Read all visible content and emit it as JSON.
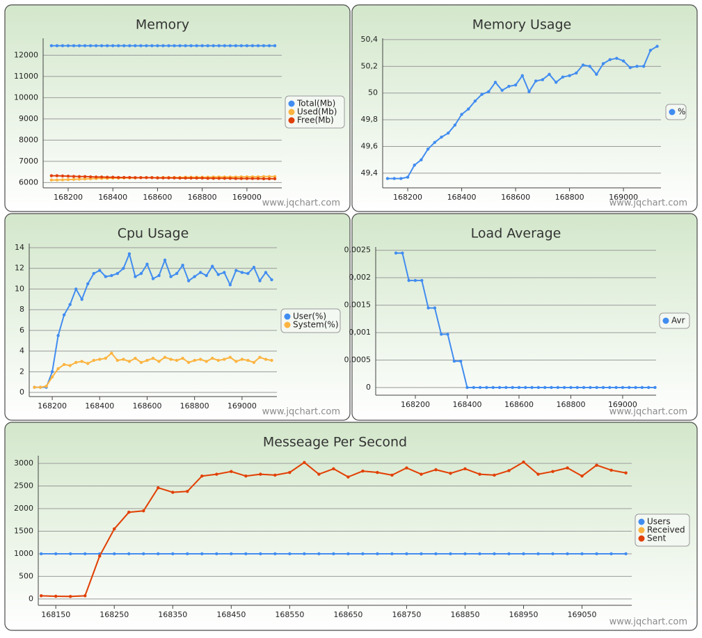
{
  "chart_data": [
    {
      "type": "line",
      "title": "Memory",
      "credit": "www.jqchart.com",
      "x": [
        168125,
        168150,
        168175,
        168200,
        168225,
        168250,
        168275,
        168300,
        168325,
        168350,
        168375,
        168400,
        168425,
        168450,
        168475,
        168500,
        168525,
        168550,
        168575,
        168600,
        168625,
        168650,
        168675,
        168700,
        168725,
        168750,
        168775,
        168800,
        168825,
        168850,
        168875,
        168900,
        168925,
        168950,
        168975,
        169000,
        169025,
        169050,
        169075,
        169100,
        169125
      ],
      "xlim": [
        168088,
        169156
      ],
      "xticks": [
        168200,
        168400,
        168600,
        168800,
        169000
      ],
      "ylim": [
        5750,
        12800
      ],
      "yticks": [
        6000,
        7000,
        8000,
        9000,
        10000,
        11000,
        12000
      ],
      "grid": true,
      "legend": "right",
      "series": [
        {
          "name": "Total(Mb)",
          "color": "#418cf0",
          "values": [
            12450,
            12450,
            12450,
            12450,
            12450,
            12450,
            12450,
            12450,
            12450,
            12450,
            12450,
            12450,
            12450,
            12450,
            12450,
            12450,
            12450,
            12450,
            12450,
            12450,
            12450,
            12450,
            12450,
            12450,
            12450,
            12450,
            12450,
            12450,
            12450,
            12450,
            12450,
            12450,
            12450,
            12450,
            12450,
            12450,
            12450,
            12450,
            12450,
            12450,
            12450
          ]
        },
        {
          "name": "Used(Mb)",
          "color": "#fcb441",
          "values": [
            6120,
            6120,
            6130,
            6140,
            6150,
            6160,
            6170,
            6180,
            6190,
            6200,
            6200,
            6210,
            6210,
            6220,
            6220,
            6220,
            6230,
            6230,
            6230,
            6230,
            6240,
            6240,
            6240,
            6240,
            6250,
            6250,
            6250,
            6250,
            6250,
            6260,
            6260,
            6260,
            6260,
            6260,
            6270,
            6270,
            6270,
            6270,
            6280,
            6280,
            6280
          ]
        },
        {
          "name": "Free(Mb)",
          "color": "#e0400a",
          "values": [
            6320,
            6320,
            6310,
            6300,
            6290,
            6280,
            6280,
            6270,
            6260,
            6260,
            6250,
            6250,
            6240,
            6240,
            6240,
            6230,
            6230,
            6230,
            6230,
            6220,
            6220,
            6220,
            6220,
            6210,
            6210,
            6210,
            6210,
            6210,
            6200,
            6200,
            6200,
            6200,
            6200,
            6190,
            6190,
            6190,
            6190,
            6190,
            6180,
            6180,
            6180
          ]
        }
      ]
    },
    {
      "type": "line",
      "title": "Memory Usage",
      "credit": "www.jqchart.com",
      "x": [
        168125,
        168150,
        168175,
        168200,
        168225,
        168250,
        168275,
        168300,
        168325,
        168350,
        168375,
        168400,
        168425,
        168450,
        168475,
        168500,
        168525,
        168550,
        168575,
        168600,
        168625,
        168650,
        168675,
        168700,
        168725,
        168750,
        168775,
        168800,
        168825,
        168850,
        168875,
        168900,
        168925,
        168950,
        168975,
        169000,
        169025,
        169050,
        169075,
        169100,
        169125
      ],
      "xlim": [
        168107,
        169139
      ],
      "xticks": [
        168200,
        168400,
        168600,
        168800,
        169000
      ],
      "ylim": [
        49.29,
        50.41
      ],
      "yticks": [
        {
          "value": 49.4,
          "label": "49,4"
        },
        {
          "value": 49.6,
          "label": "49,6"
        },
        {
          "value": 49.8,
          "label": "49,8"
        },
        50,
        {
          "value": 50.2,
          "label": "50,2"
        },
        {
          "value": 50.4,
          "label": "50,4"
        }
      ],
      "grid": true,
      "legend": "right",
      "series": [
        {
          "name": "%",
          "color": "#418cf0",
          "values": [
            49.36,
            49.36,
            49.36,
            49.37,
            49.46,
            49.5,
            49.58,
            49.63,
            49.67,
            49.7,
            49.76,
            49.84,
            49.88,
            49.94,
            49.99,
            50.01,
            50.08,
            50.02,
            50.05,
            50.06,
            50.13,
            50.01,
            50.09,
            50.1,
            50.14,
            50.08,
            50.12,
            50.13,
            50.15,
            50.21,
            50.2,
            50.14,
            50.22,
            50.25,
            50.26,
            50.24,
            50.19,
            50.2,
            50.2,
            50.32,
            50.35
          ]
        }
      ]
    },
    {
      "type": "line",
      "title": "Cpu Usage",
      "credit": "www.jqchart.com",
      "x": [
        168125,
        168150,
        168175,
        168200,
        168225,
        168250,
        168275,
        168300,
        168325,
        168350,
        168375,
        168400,
        168425,
        168450,
        168475,
        168500,
        168525,
        168550,
        168575,
        168600,
        168625,
        168650,
        168675,
        168700,
        168725,
        168750,
        168775,
        168800,
        168825,
        168850,
        168875,
        168900,
        168925,
        168950,
        168975,
        169000,
        169025,
        169050,
        169075,
        169100,
        169125
      ],
      "xlim": [
        168103,
        169147
      ],
      "xticks": [
        168200,
        168400,
        168600,
        168800,
        169000
      ],
      "ylim": [
        -0.4,
        14.4
      ],
      "yticks": [
        0,
        2,
        4,
        6,
        8,
        10,
        12,
        14
      ],
      "grid": true,
      "legend": "right",
      "series": [
        {
          "name": "User(%)",
          "color": "#418cf0",
          "values": [
            0.5,
            0.5,
            0.5,
            2,
            5.5,
            7.5,
            8.5,
            10,
            9,
            10.5,
            11.5,
            11.8,
            11.2,
            11.3,
            11.5,
            12,
            13.4,
            11.2,
            11.5,
            12.4,
            11,
            11.3,
            12.8,
            11.2,
            11.5,
            12.3,
            10.8,
            11.2,
            11.6,
            11.3,
            12.2,
            11.4,
            11.6,
            10.4,
            11.8,
            11.6,
            11.5,
            12.1,
            10.8,
            11.6,
            10.9
          ]
        },
        {
          "name": "System(%)",
          "color": "#fcb441",
          "values": [
            0.5,
            0.5,
            0.6,
            1.5,
            2.3,
            2.7,
            2.6,
            2.9,
            3,
            2.8,
            3.1,
            3.2,
            3.3,
            3.8,
            3.1,
            3.2,
            3,
            3.3,
            2.9,
            3.1,
            3.3,
            3,
            3.4,
            3.2,
            3.1,
            3.3,
            2.9,
            3.1,
            3.2,
            3,
            3.3,
            3.1,
            3.2,
            3.4,
            3,
            3.2,
            3.1,
            2.9,
            3.4,
            3.2,
            3.1
          ]
        }
      ]
    },
    {
      "type": "line",
      "title": "Load Average",
      "credit": "www.jqchart.com",
      "x": [
        168125,
        168150,
        168175,
        168200,
        168225,
        168250,
        168275,
        168300,
        168325,
        168350,
        168375,
        168400,
        168425,
        168450,
        168475,
        168500,
        168525,
        168550,
        168575,
        168600,
        168625,
        168650,
        168675,
        168700,
        168725,
        168750,
        168775,
        168800,
        168825,
        168850,
        168875,
        168900,
        168925,
        168950,
        168975,
        169000,
        169025,
        169050,
        169075,
        169100,
        169125
      ],
      "xlim": [
        168047,
        169129
      ],
      "xticks": [
        168200,
        168400,
        168600,
        168800,
        169000
      ],
      "ylim": [
        -0.00014,
        0.00256
      ],
      "yticks": [
        0,
        {
          "value": 0.0005,
          "label": "0,0005"
        },
        {
          "value": 0.001,
          "label": "0,001"
        },
        {
          "value": 0.0015,
          "label": "0,0015"
        },
        {
          "value": 0.002,
          "label": "0,002"
        },
        {
          "value": 0.0025,
          "label": "0,0025"
        }
      ],
      "grid": true,
      "legend": "right",
      "series": [
        {
          "name": "Avr",
          "color": "#418cf0",
          "values": [
            0.00245,
            0.00245,
            0.00195,
            0.00195,
            0.00195,
            0.00145,
            0.00145,
            0.00097,
            0.00097,
            0.00048,
            0.00048,
            0,
            0,
            0,
            0,
            0,
            0,
            0,
            0,
            0,
            0,
            0,
            0,
            0,
            0,
            0,
            0,
            0,
            0,
            0,
            0,
            0,
            0,
            0,
            0,
            0,
            0,
            0,
            0,
            0,
            0
          ]
        }
      ]
    },
    {
      "type": "line",
      "title": "Messeage Per Second",
      "credit": "www.jqchart.com",
      "x": [
        168125,
        168150,
        168175,
        168200,
        168225,
        168250,
        168275,
        168300,
        168325,
        168350,
        168375,
        168400,
        168425,
        168450,
        168475,
        168500,
        168525,
        168550,
        168575,
        168600,
        168625,
        168650,
        168675,
        168700,
        168725,
        168750,
        168775,
        168800,
        168825,
        168850,
        168875,
        168900,
        168925,
        168950,
        168975,
        169000,
        169025,
        169050,
        169075,
        169100,
        169125
      ],
      "xlim": [
        168120,
        169135
      ],
      "xticks": [
        168150,
        168250,
        168350,
        168450,
        168550,
        168650,
        168750,
        168850,
        168950,
        169050
      ],
      "ylim": [
        -140,
        3170
      ],
      "yticks": [
        0,
        500,
        1000,
        1500,
        2000,
        2500,
        3000
      ],
      "grid": true,
      "legend": "right",
      "series": [
        {
          "name": "Users",
          "color": "#418cf0",
          "values": [
            1000,
            1000,
            1000,
            1000,
            1000,
            1000,
            1000,
            1000,
            1000,
            1000,
            1000,
            1000,
            1000,
            1000,
            1000,
            1000,
            1000,
            1000,
            1000,
            1000,
            1000,
            1000,
            1000,
            1000,
            1000,
            1000,
            1000,
            1000,
            1000,
            1000,
            1000,
            1000,
            1000,
            1000,
            1000,
            1000,
            1000,
            1000,
            1000,
            1000,
            1000
          ]
        },
        {
          "name": "Received",
          "color": "#fcb441",
          "values": [
            70,
            60,
            55,
            70,
            950,
            1550,
            1920,
            1950,
            2460,
            2360,
            2380,
            2720,
            2760,
            2820,
            2720,
            2760,
            2740,
            2800,
            3020,
            2760,
            2880,
            2700,
            2830,
            2800,
            2740,
            2900,
            2760,
            2860,
            2780,
            2880,
            2760,
            2740,
            2840,
            3030,
            2760,
            2820,
            2900,
            2720,
            2960,
            2850,
            2790
          ]
        },
        {
          "name": "Sent",
          "color": "#e0400a",
          "values": [
            70,
            60,
            55,
            70,
            950,
            1550,
            1920,
            1950,
            2460,
            2360,
            2380,
            2720,
            2760,
            2820,
            2720,
            2760,
            2740,
            2800,
            3020,
            2760,
            2880,
            2700,
            2830,
            2800,
            2740,
            2900,
            2760,
            2860,
            2780,
            2880,
            2760,
            2740,
            2840,
            3030,
            2760,
            2820,
            2900,
            2720,
            2960,
            2850,
            2790
          ]
        }
      ]
    }
  ]
}
